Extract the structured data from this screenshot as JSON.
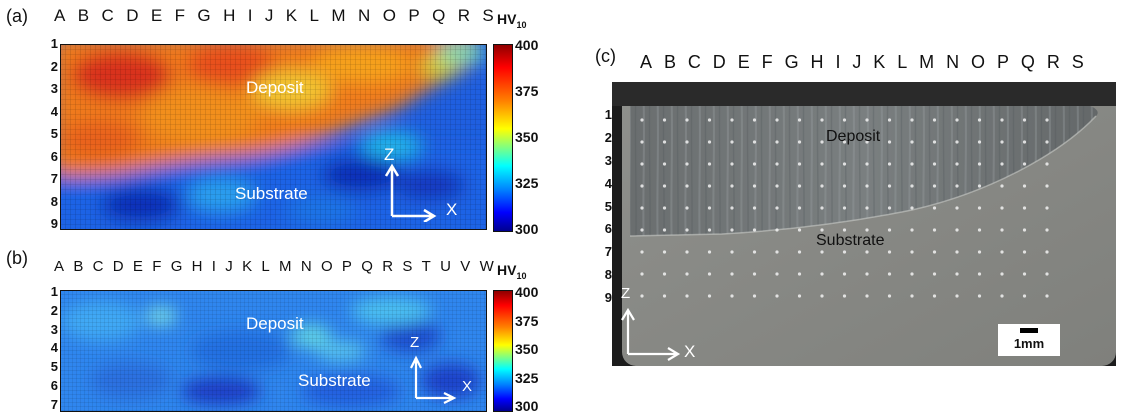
{
  "panel_a": {
    "label": "(a)",
    "columns": [
      "A",
      "B",
      "C",
      "D",
      "E",
      "F",
      "G",
      "H",
      "I",
      "J",
      "K",
      "L",
      "M",
      "N",
      "O",
      "P",
      "Q",
      "R",
      "S"
    ],
    "rows": [
      "1",
      "2",
      "3",
      "4",
      "5",
      "6",
      "7",
      "8",
      "9"
    ],
    "unit_main": "HV",
    "unit_sub": "10",
    "colorbar_ticks": [
      "400",
      "375",
      "350",
      "325",
      "300"
    ],
    "deposit_label": "Deposit",
    "substrate_label": "Substrate",
    "axis_z": "Z",
    "axis_x": "X"
  },
  "panel_b": {
    "label": "(b)",
    "columns": [
      "A",
      "B",
      "C",
      "D",
      "E",
      "F",
      "G",
      "H",
      "I",
      "J",
      "K",
      "L",
      "M",
      "N",
      "O",
      "P",
      "Q",
      "R",
      "S",
      "T",
      "U",
      "V",
      "W"
    ],
    "rows": [
      "1",
      "2",
      "3",
      "4",
      "5",
      "6",
      "7"
    ],
    "unit_main": "HV",
    "unit_sub": "10",
    "colorbar_ticks": [
      "400",
      "375",
      "350",
      "325",
      "300"
    ],
    "deposit_label": "Deposit",
    "substrate_label": "Substrate",
    "axis_z": "Z",
    "axis_x": "X"
  },
  "panel_c": {
    "label": "(c)",
    "columns": [
      "A",
      "B",
      "C",
      "D",
      "E",
      "F",
      "G",
      "H",
      "I",
      "J",
      "K",
      "L",
      "M",
      "N",
      "O",
      "P",
      "Q",
      "R",
      "S"
    ],
    "rows": [
      "1",
      "2",
      "3",
      "4",
      "5",
      "6",
      "7",
      "8",
      "9"
    ],
    "deposit_label": "Deposit",
    "substrate_label": "Substrate",
    "axis_z": "Z",
    "axis_x": "X",
    "scale_bar": "1mm"
  },
  "colors": {
    "jet_low": "#00008f",
    "jet_mid": "#00bfff",
    "jet_high": "#8f0000",
    "micrograph_bg": "#8a8a86",
    "deposit_tone": "#6f7474"
  }
}
